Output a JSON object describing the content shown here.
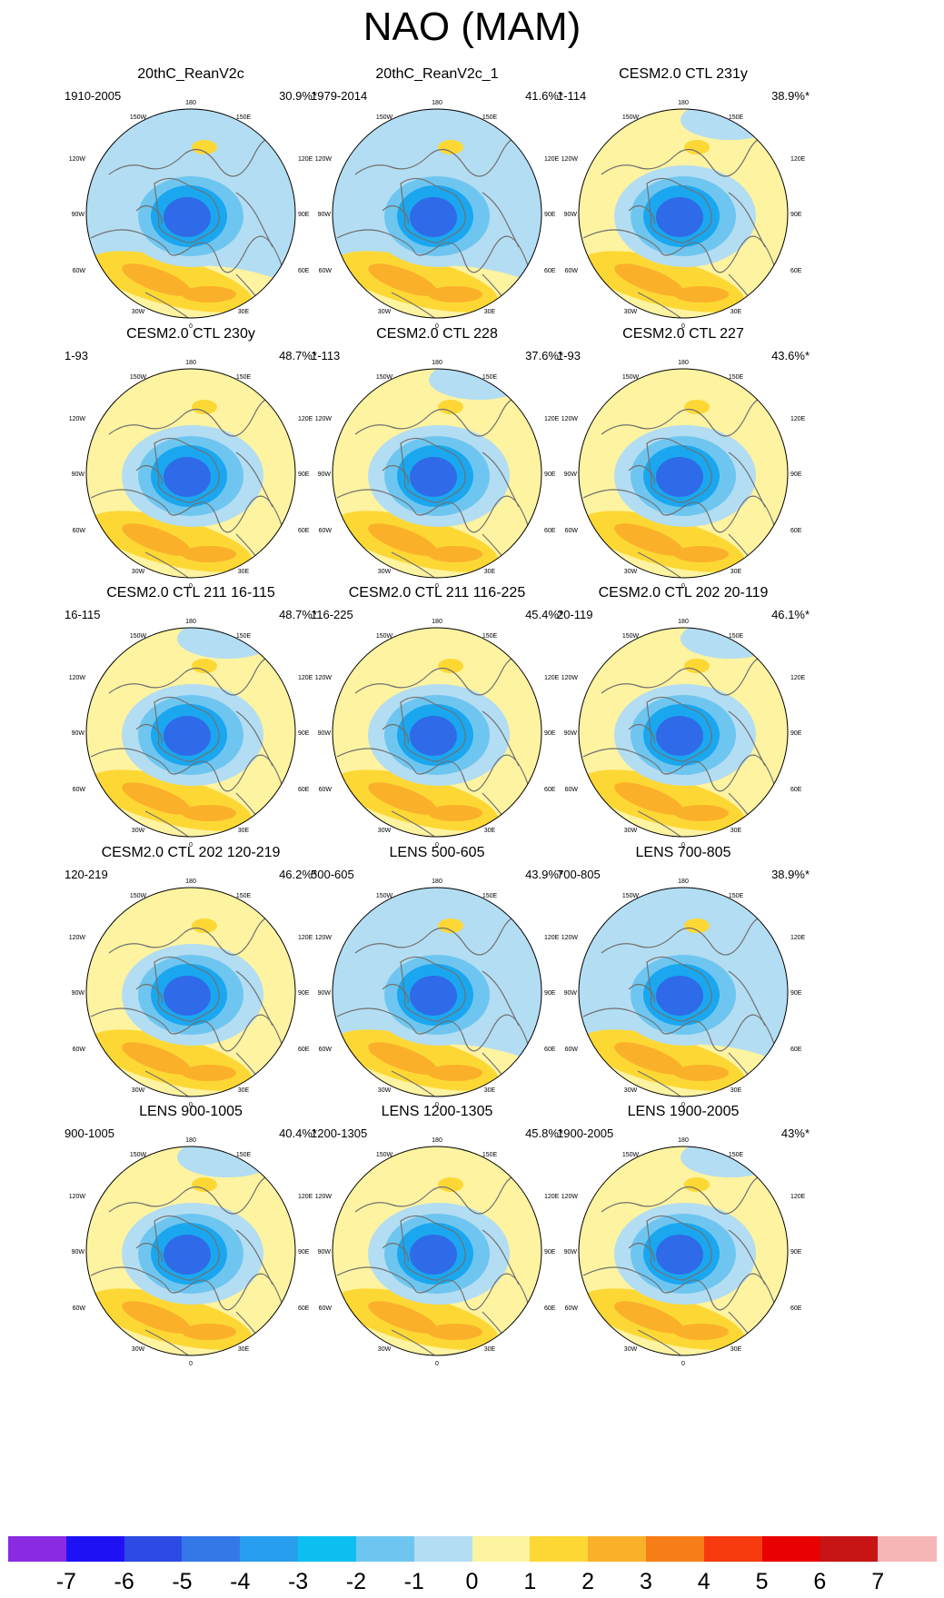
{
  "title": "NAO (MAM)",
  "map_labels": {
    "lon_180": "180",
    "lon_150w": "150W",
    "lon_150e": "150E",
    "lon_120w": "120W",
    "lon_120e": "120E",
    "lon_90w": "90W",
    "lon_90e": "90E",
    "lon_60w": "60W",
    "lon_60e": "60E",
    "lon_30w": "30W",
    "lon_30e": "30E",
    "lon_0": "0"
  },
  "panels": [
    {
      "title": "20thC_ReanV2c",
      "period": "1910-2005",
      "variance": "30.9%*"
    },
    {
      "title": "20thC_ReanV2c_1",
      "period": "1979-2014",
      "variance": "41.6%*"
    },
    {
      "title": "CESM2.0 CTL 231y",
      "period": "1-114",
      "variance": "38.9%*"
    },
    {
      "title": "CESM2.0 CTL 230y",
      "period": "1-93",
      "variance": "48.7%*"
    },
    {
      "title": "CESM2.0 CTL 228",
      "period": "1-113",
      "variance": "37.6%*"
    },
    {
      "title": "CESM2.0 CTL 227",
      "period": "1-93",
      "variance": "43.6%*"
    },
    {
      "title": "CESM2.0 CTL 211 16-115",
      "period": "16-115",
      "variance": "48.7%*"
    },
    {
      "title": "CESM2.0 CTL 211 116-225",
      "period": "116-225",
      "variance": "45.4%*"
    },
    {
      "title": "CESM2.0 CTL 202 20-119",
      "period": "20-119",
      "variance": "46.1%*"
    },
    {
      "title": "CESM2.0 CTL 202 120-219",
      "period": "120-219",
      "variance": "46.2%*"
    },
    {
      "title": "LENS 500-605",
      "period": "500-605",
      "variance": "43.9%*"
    },
    {
      "title": "LENS 700-805",
      "period": "700-805",
      "variance": "38.9%*"
    },
    {
      "title": "LENS 900-1005",
      "period": "900-1005",
      "variance": "40.4%*"
    },
    {
      "title": "LENS 1200-1305",
      "period": "1200-1305",
      "variance": "45.8%*"
    },
    {
      "title": "LENS 1900-2005",
      "period": "1900-2005",
      "variance": "43%*"
    }
  ],
  "colorbar": {
    "colors": [
      "#8a2be2",
      "#1e12f5",
      "#2b4be4",
      "#3478e8",
      "#279fee",
      "#0bbff0",
      "#6ec6f0",
      "#b3ddf2",
      "#fdf3a0",
      "#fdd835",
      "#fbb02a",
      "#f77e16",
      "#f73a0f",
      "#e90000",
      "#c81414",
      "#f7b6b6"
    ],
    "labels": [
      "-7",
      "-6",
      "-5",
      "-4",
      "-3",
      "-2",
      "-1",
      "0",
      "1",
      "2",
      "3",
      "4",
      "5",
      "6",
      "7"
    ]
  },
  "palette": {
    "neg3": "#2f6ae8",
    "neg2": "#1aa7ef",
    "neg1": "#6ec6f0",
    "neg_weak": "#b3ddf2",
    "pos_weak": "#fdf3a0",
    "pos1": "#fdd835",
    "pos2": "#fbb02a",
    "coast": "#707070"
  }
}
